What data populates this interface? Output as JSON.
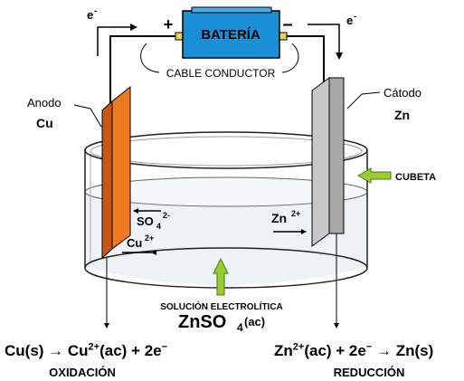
{
  "battery": {
    "label": "BATERÍA",
    "plus": "+",
    "minus": "–",
    "color": "#1a8fd6"
  },
  "wire": {
    "label": "CABLE CONDUCTOR"
  },
  "electron": {
    "symbol": "e",
    "charge": "-"
  },
  "anode": {
    "label": "Anodo",
    "metal": "Cu",
    "color": "#f07a22"
  },
  "cathode": {
    "label": "Cátodo",
    "metal": "Zn",
    "color": "#c8c8c8"
  },
  "beaker": {
    "label": "CUBETA"
  },
  "solution": {
    "label": "SOLUCIÓN ELECTROLÍTICA",
    "formula_base": "ZnSO",
    "formula_sub": "4",
    "formula_state": "(ac)"
  },
  "ions": {
    "sulfate_base": "SO",
    "sulfate_sub": "4",
    "sulfate_charge": "2-",
    "copper_base": "Cu",
    "copper_charge": "2+",
    "zinc_base": "Zn",
    "zinc_charge": "2+"
  },
  "oxidation": {
    "label": "OXIDACIÓN",
    "left": "Cu(s) → Cu",
    "left_charge": "2+",
    "right": "(ac) + 2e",
    "right_charge": "−"
  },
  "reduction": {
    "label": "REDUCCIÓN",
    "left": "Zn",
    "left_charge": "2+",
    "right": "(ac) + 2e",
    "right_charge": "−",
    "tail": " → Zn(s)"
  },
  "colors": {
    "arrow_green": "#9acd32",
    "wire": "#000000"
  }
}
